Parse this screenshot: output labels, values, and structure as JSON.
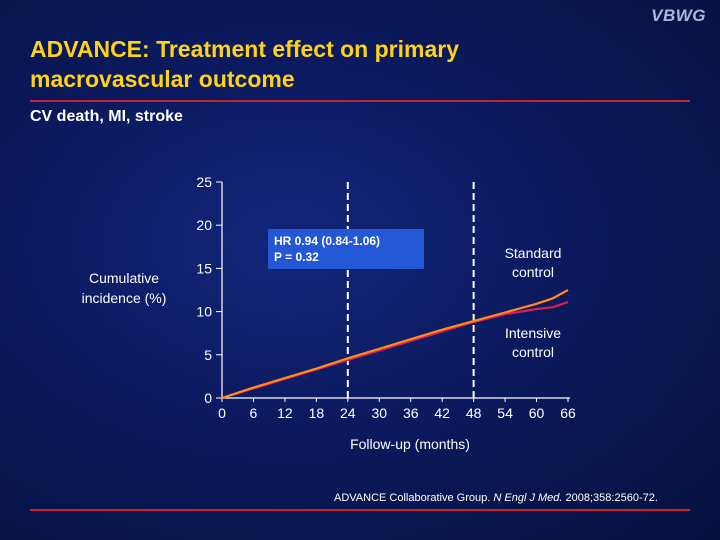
{
  "slide": {
    "logo": "VBWG",
    "title_line1": "ADVANCE: Treatment effect on primary",
    "title_line2": "macrovascular outcome",
    "subtitle": "CV death, MI, stroke",
    "citation_authors": "ADVANCE Collaborative Group.",
    "citation_journal": "N Engl J Med.",
    "citation_details": "2008;358:2560-72."
  },
  "annotation": {
    "line1": "HR 0.94 (0.84-1.06)",
    "line2": "P = 0.32"
  },
  "colors": {
    "background": "#0b1a5e",
    "title": "#ffd21a",
    "rule": "#c8202c",
    "standard_series": "#ff8c1a",
    "intensive_series": "#d6205a",
    "annotation_box": "#2357d6"
  },
  "chart_data": {
    "type": "line",
    "title": "",
    "xlabel": "Follow-up (months)",
    "ylabel_line1": "Cumulative",
    "ylabel_line2": "incidence (%)",
    "xlim": [
      0,
      66
    ],
    "ylim": [
      0,
      25
    ],
    "xticks": [
      0,
      6,
      12,
      18,
      24,
      30,
      36,
      42,
      48,
      54,
      60,
      66
    ],
    "yticks": [
      0,
      5,
      10,
      15,
      20,
      25
    ],
    "vlines": [
      24,
      48
    ],
    "grid": false,
    "series": [
      {
        "name_line1": "Standard",
        "name_line2": "control",
        "x": [
          0,
          6,
          12,
          18,
          24,
          30,
          36,
          42,
          48,
          54,
          60,
          63,
          66
        ],
        "y": [
          0,
          1.2,
          2.3,
          3.4,
          4.6,
          5.7,
          6.8,
          7.9,
          8.9,
          9.9,
          10.9,
          11.5,
          12.5
        ]
      },
      {
        "name_line1": "Intensive",
        "name_line2": "control",
        "x": [
          0,
          6,
          12,
          18,
          24,
          30,
          36,
          42,
          48,
          54,
          60,
          63,
          66
        ],
        "y": [
          0,
          1.1,
          2.2,
          3.3,
          4.4,
          5.5,
          6.6,
          7.7,
          8.8,
          9.7,
          10.3,
          10.5,
          11.1
        ]
      }
    ]
  }
}
